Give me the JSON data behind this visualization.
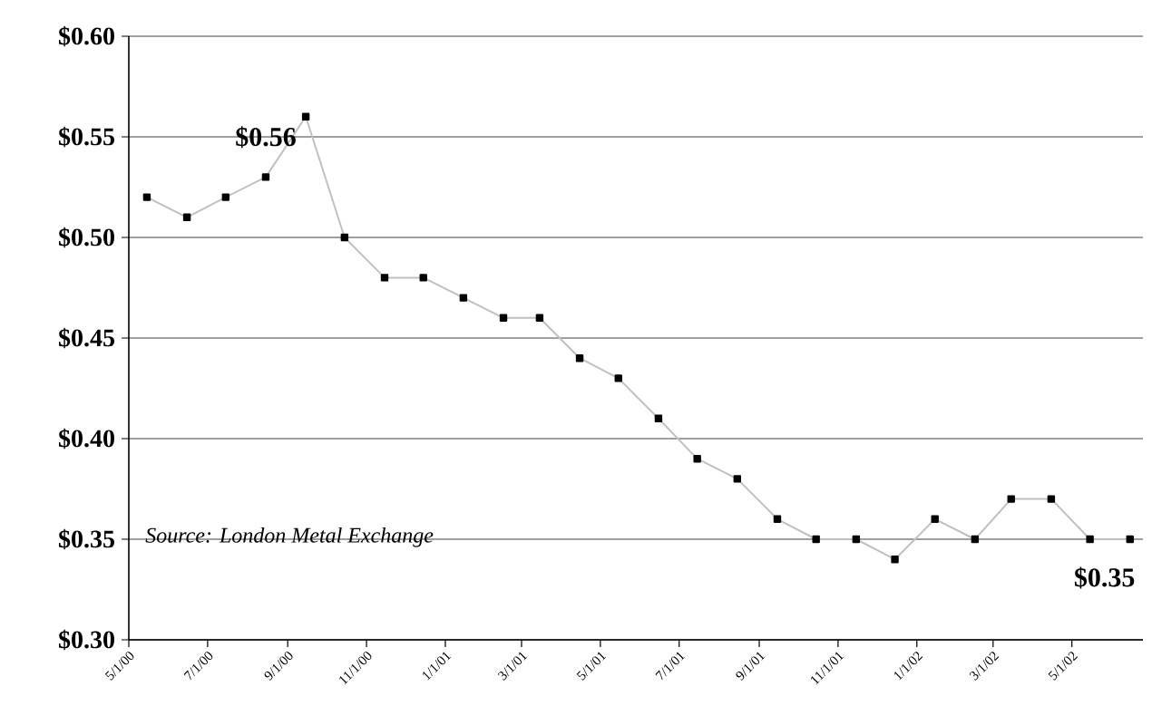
{
  "chart_data": {
    "type": "line",
    "x": [
      "2000-05-15",
      "2000-06-15",
      "2000-07-15",
      "2000-08-15",
      "2000-09-15",
      "2000-10-15",
      "2000-11-15",
      "2000-12-15",
      "2001-01-15",
      "2001-02-15",
      "2001-03-15",
      "2001-04-15",
      "2001-05-15",
      "2001-06-15",
      "2001-07-15",
      "2001-08-15",
      "2001-09-15",
      "2001-10-15",
      "2001-11-15",
      "2001-12-15",
      "2002-01-15",
      "2002-02-15",
      "2002-03-15",
      "2002-04-15",
      "2002-05-15",
      "2002-06-15"
    ],
    "values": [
      0.52,
      0.51,
      0.52,
      0.53,
      0.56,
      0.5,
      0.48,
      0.48,
      0.47,
      0.46,
      0.46,
      0.44,
      0.43,
      0.41,
      0.39,
      0.38,
      0.36,
      0.35,
      0.35,
      0.34,
      0.36,
      0.35,
      0.37,
      0.37,
      0.35,
      0.35
    ],
    "color": "#c0c0c0",
    "marker": "square",
    "line_style": "solid",
    "grid": "y",
    "xlim": [
      "2000-05-01",
      "2002-06-25"
    ],
    "xticks": [
      {
        "value": "2000-05-01",
        "label": "5/1/00"
      },
      {
        "value": "2000-07-01",
        "label": "7/1/00"
      },
      {
        "value": "2000-09-01",
        "label": "9/1/00"
      },
      {
        "value": "2000-11-01",
        "label": "11/1/00"
      },
      {
        "value": "2001-01-01",
        "label": "1/1/01"
      },
      {
        "value": "2001-03-01",
        "label": "3/1/01"
      },
      {
        "value": "2001-05-01",
        "label": "5/1/01"
      },
      {
        "value": "2001-07-01",
        "label": "7/1/01"
      },
      {
        "value": "2001-09-01",
        "label": "9/1/01"
      },
      {
        "value": "2001-11-01",
        "label": "11/1/01"
      },
      {
        "value": "2002-01-01",
        "label": "1/1/02"
      },
      {
        "value": "2002-03-01",
        "label": "3/1/02"
      },
      {
        "value": "2002-05-01",
        "label": "5/1/02"
      }
    ],
    "ylim": [
      0.3,
      0.6
    ],
    "yticks": [
      {
        "value": 0.3,
        "label": "$0.30"
      },
      {
        "value": 0.35,
        "label": "$0.35"
      },
      {
        "value": 0.4,
        "label": "$0.40"
      },
      {
        "value": 0.45,
        "label": "$0.45"
      },
      {
        "value": 0.5,
        "label": "$0.50"
      },
      {
        "value": 0.55,
        "label": "$0.55"
      },
      {
        "value": 0.6,
        "label": "$0.60"
      }
    ],
    "annotations": [
      {
        "text": "$0.56",
        "x": "2000-09-15",
        "y": 0.56
      },
      {
        "text": "$0.35",
        "x": "2002-06-15",
        "y": 0.35
      },
      "Source: London Metal Exchange"
    ]
  }
}
